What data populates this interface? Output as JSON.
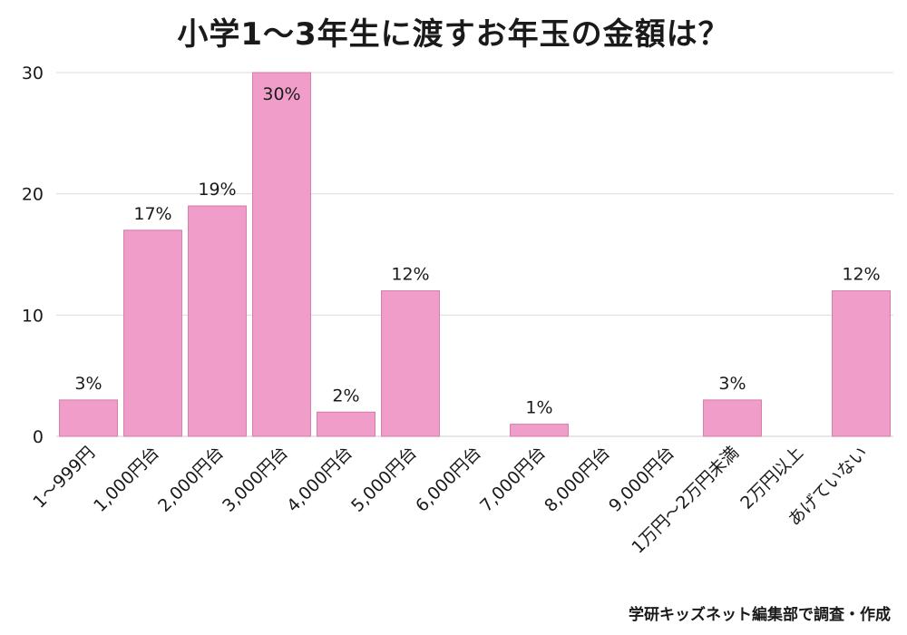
{
  "title": "小学1〜3年生に渡すお年玉の金額は？",
  "credit": "学研キッズネット編集部で調査・作成",
  "chart_data": {
    "type": "bar",
    "categories": [
      "1〜999円",
      "1,000円台",
      "2,000円台",
      "3,000円台",
      "4,000円台",
      "5,000円台",
      "6,000円台",
      "7,000円台",
      "8,000円台",
      "9,000円台",
      "1万円〜2万円未満",
      "2万円以上",
      "あげていない"
    ],
    "values": [
      3,
      17,
      19,
      30,
      2,
      12,
      0,
      1,
      0,
      0,
      3,
      0,
      12
    ],
    "data_labels": [
      "3%",
      "17%",
      "19%",
      "30%",
      "2%",
      "12%",
      "",
      "1%",
      "",
      "",
      "3%",
      "",
      "12%"
    ],
    "ylim": [
      0,
      30
    ],
    "yticks": [
      "0",
      "10",
      "20",
      "30"
    ],
    "grid": true,
    "bar_color": "#f09ec9"
  }
}
